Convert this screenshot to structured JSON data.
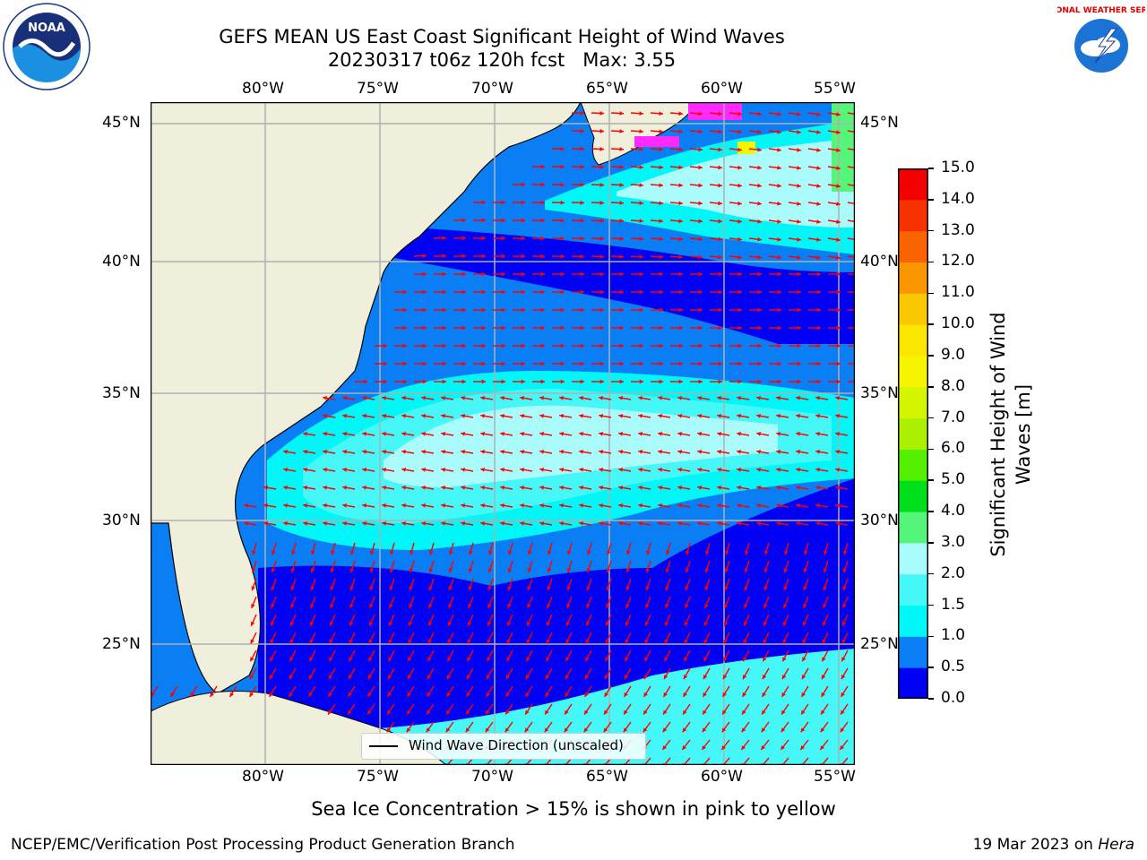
{
  "title": {
    "line1": "GEFS MEAN US East Coast Significant Height of Wind Waves",
    "line2": "20230317 t06z 120h fcst   Max: 3.55"
  },
  "logos": {
    "left": {
      "icon": "noaa-logo-icon",
      "text": "NOAA"
    },
    "right": {
      "icon": "nws-logo-icon",
      "text": "NATIONAL WEATHER SERVICE"
    }
  },
  "map": {
    "longitude_labels": [
      "80°W",
      "75°W",
      "70°W",
      "65°W",
      "60°W",
      "55°W"
    ],
    "latitude_labels": [
      "45°N",
      "40°N",
      "35°N",
      "30°N",
      "25°N"
    ],
    "legend_label": "Wind Wave Direction (unscaled)",
    "colors": {
      "land": "#efefdc",
      "bin_0_0_5": "#0000f5",
      "bin_0_5_1": "#0a7ff5",
      "bin_1_1_5": "#00f7f7",
      "bin_1_5_2": "#45f7f7",
      "bin_2_3": "#aafcfc",
      "arrow": "#ff0000",
      "ice": "#ff2aff"
    }
  },
  "colorbar": {
    "label": "Significant Height of Wind Waves [m]",
    "ticks": [
      "0.0",
      "0.5",
      "1.0",
      "1.5",
      "2.0",
      "3.0",
      "4.0",
      "5.0",
      "6.0",
      "7.0",
      "8.0",
      "9.0",
      "10.0",
      "11.0",
      "12.0",
      "13.0",
      "14.0",
      "15.0"
    ],
    "colors": [
      "#0000f5",
      "#0a7ff5",
      "#00f7f7",
      "#45f7f7",
      "#aafcfc",
      "#55f57a",
      "#00e01a",
      "#55f000",
      "#aaf000",
      "#d4f500",
      "#f5f500",
      "#fae600",
      "#fac800",
      "#fa9600",
      "#fa6400",
      "#f53200",
      "#f50000"
    ]
  },
  "subtitle": "Sea Ice Concentration > 15% is shown in pink to yellow",
  "footer": {
    "left": "NCEP/EMC/Verification Post Processing Product Generation Branch",
    "right_prefix": "19 Mar 2023 on ",
    "right_host": "Hera"
  }
}
